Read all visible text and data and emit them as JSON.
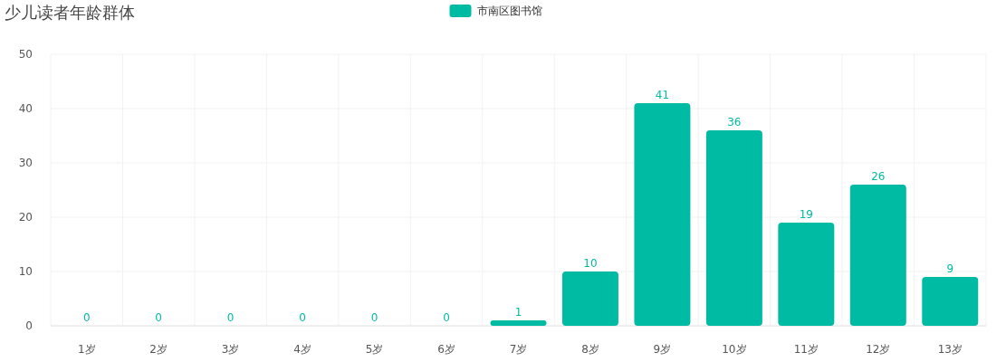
{
  "chart_data": {
    "type": "bar",
    "title": "少儿读者年龄群体",
    "categories": [
      "1岁",
      "2岁",
      "3岁",
      "4岁",
      "5岁",
      "6岁",
      "7岁",
      "8岁",
      "9岁",
      "10岁",
      "11岁",
      "12岁",
      "13岁"
    ],
    "series": [
      {
        "name": "市南区图书馆",
        "color": "#00bba3",
        "values": [
          0,
          0,
          0,
          0,
          0,
          0,
          1,
          10,
          41,
          36,
          19,
          26,
          9
        ]
      }
    ],
    "ylim": [
      0,
      50
    ],
    "yticks": [
      0,
      10,
      20,
      30,
      40,
      50
    ],
    "grid": true,
    "legend": "top",
    "data_labels": true
  }
}
